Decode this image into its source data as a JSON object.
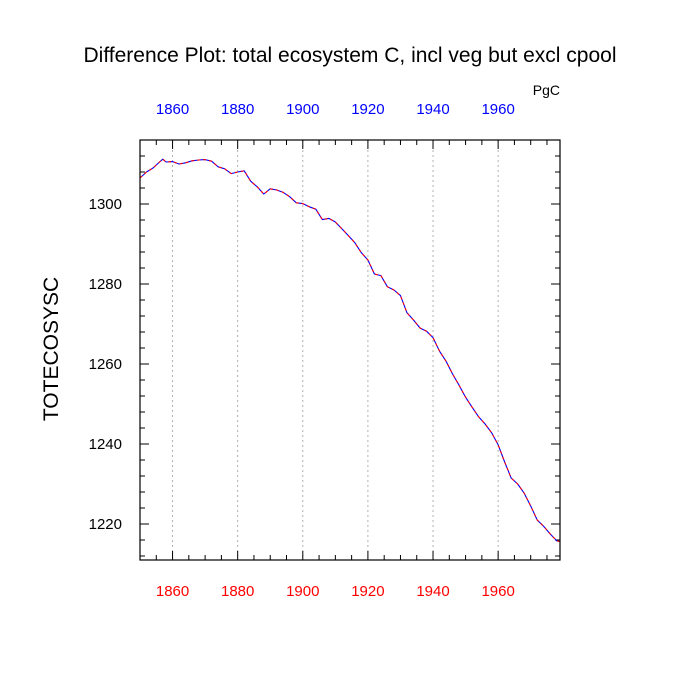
{
  "chart_data": {
    "type": "line",
    "title": "Difference Plot: total ecosystem C, incl veg but excl cpool",
    "units": "PgC",
    "ylabel": "TOTECOSYSC",
    "xlabel": "",
    "xlim": [
      1850,
      1979
    ],
    "ylim": [
      1211,
      1316
    ],
    "x_ticks": [
      1860,
      1880,
      1900,
      1920,
      1940,
      1960
    ],
    "x_tick_labels_bottom": [
      "1860",
      "1880",
      "1900",
      "1920",
      "1940",
      "1960"
    ],
    "x_tick_labels_top": [
      "1860",
      "1880",
      "1900",
      "1920",
      "1940",
      "1960"
    ],
    "y_ticks": [
      1220,
      1240,
      1260,
      1280,
      1300
    ],
    "y_tick_labels": [
      "1220",
      "1240",
      "1260",
      "1280",
      "1300"
    ],
    "x_grid": "dotted vertical at major ticks",
    "y_grid": false,
    "colors": {
      "bottom_axis_labels": "#ff0000",
      "top_axis_labels": "#0000ff",
      "line_solid": "#0000ff",
      "line_dashed": "#ff0000",
      "grid": "#aaaaaa"
    },
    "series": [
      {
        "style": "blue solid with red dashed overlay",
        "x": [
          1850,
          1852,
          1854,
          1856,
          1857,
          1858,
          1860,
          1862,
          1864,
          1866,
          1868,
          1870,
          1872,
          1874,
          1876,
          1878,
          1880,
          1882,
          1884,
          1886,
          1888,
          1890,
          1892,
          1894,
          1896,
          1898,
          1900,
          1902,
          1904,
          1906,
          1908,
          1910,
          1912,
          1914,
          1916,
          1918,
          1920,
          1922,
          1924,
          1926,
          1928,
          1930,
          1932,
          1934,
          1936,
          1938,
          1940,
          1942,
          1944,
          1946,
          1948,
          1950,
          1952,
          1954,
          1956,
          1958,
          1960,
          1962,
          1964,
          1966,
          1968,
          1970,
          1972,
          1974,
          1976,
          1978,
          1979
        ],
        "values": [
          1306.5,
          1308,
          1309,
          1310.5,
          1311.2,
          1310.5,
          1310.6,
          1310,
          1310.3,
          1310.8,
          1311,
          1311.1,
          1310.7,
          1309.3,
          1308.8,
          1307.6,
          1308,
          1308.3,
          1305.7,
          1304.3,
          1302.5,
          1303.8,
          1303.5,
          1302.9,
          1301.8,
          1300.3,
          1300.1,
          1299.3,
          1298.7,
          1296.1,
          1296.4,
          1295.5,
          1293.8,
          1292.1,
          1290.3,
          1287.8,
          1286,
          1282.5,
          1282.1,
          1279.3,
          1278.5,
          1277.1,
          1272.8,
          1271,
          1269,
          1268.2,
          1266.6,
          1263.2,
          1260.7,
          1257.5,
          1254.7,
          1251.7,
          1249.2,
          1246.8,
          1245,
          1242.8,
          1239.8,
          1235.5,
          1231.5,
          1230,
          1227.7,
          1224.5,
          1221,
          1219.4,
          1217.5,
          1215.8,
          1215.6
        ]
      }
    ]
  }
}
